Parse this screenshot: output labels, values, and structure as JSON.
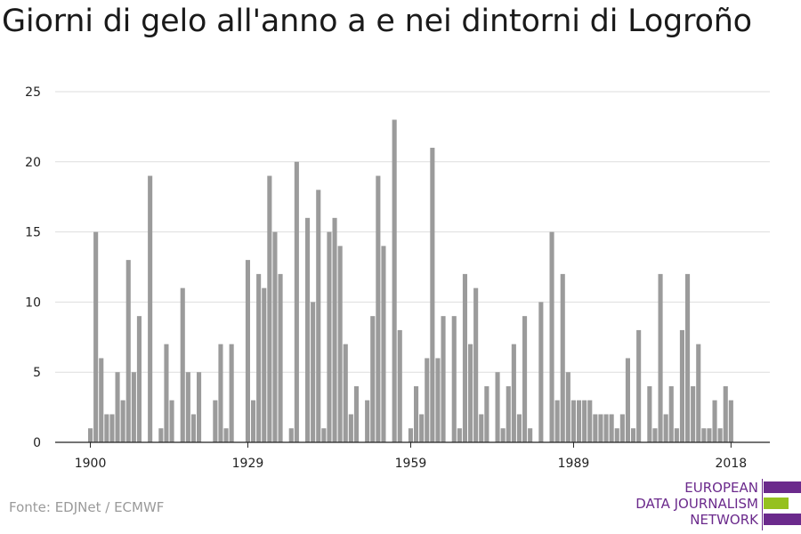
{
  "title": "Giorni di gelo all'anno a e nei dintorni di Logroño",
  "source": "Fonte: EDJNet / ECMWF",
  "logo": {
    "lines": [
      "EUROPEAN",
      "DATA JOURNALISM",
      "NETWORK"
    ],
    "colors": {
      "purple": "#6b2a8c",
      "green": "#95c11f"
    }
  },
  "colors": {
    "bar": "#9b9b9b",
    "grid": "#dddddd",
    "axis": "#222222"
  },
  "chart_data": {
    "type": "bar",
    "title": "Giorni di gelo all'anno a e nei dintorni di Logroño",
    "xlabel": "",
    "ylabel": "",
    "ylim": [
      0,
      25
    ],
    "y_ticks": [
      0,
      5,
      10,
      15,
      20,
      25
    ],
    "x_ticks": [
      1900,
      1929,
      1959,
      1989,
      2018
    ],
    "grid": true,
    "x_start": 1900,
    "values": [
      1,
      15,
      6,
      2,
      2,
      5,
      3,
      13,
      5,
      9,
      0,
      19,
      0,
      1,
      7,
      3,
      0,
      11,
      5,
      2,
      5,
      0,
      0,
      3,
      7,
      1,
      7,
      0,
      0,
      13,
      3,
      12,
      11,
      19,
      15,
      12,
      0,
      1,
      20,
      0,
      16,
      10,
      18,
      1,
      15,
      16,
      14,
      7,
      2,
      4,
      0,
      3,
      9,
      19,
      14,
      0,
      23,
      8,
      0,
      1,
      4,
      2,
      6,
      21,
      6,
      9,
      0,
      9,
      1,
      12,
      7,
      11,
      2,
      4,
      0,
      5,
      1,
      4,
      7,
      2,
      9,
      1,
      0,
      10,
      0,
      15,
      3,
      12,
      5,
      3,
      3,
      3,
      3,
      2,
      2,
      2,
      2,
      1,
      2,
      6,
      1,
      8,
      0,
      4,
      1,
      12,
      2,
      4,
      1,
      8,
      12,
      4,
      7,
      1,
      1,
      3,
      1,
      4,
      3
    ]
  }
}
